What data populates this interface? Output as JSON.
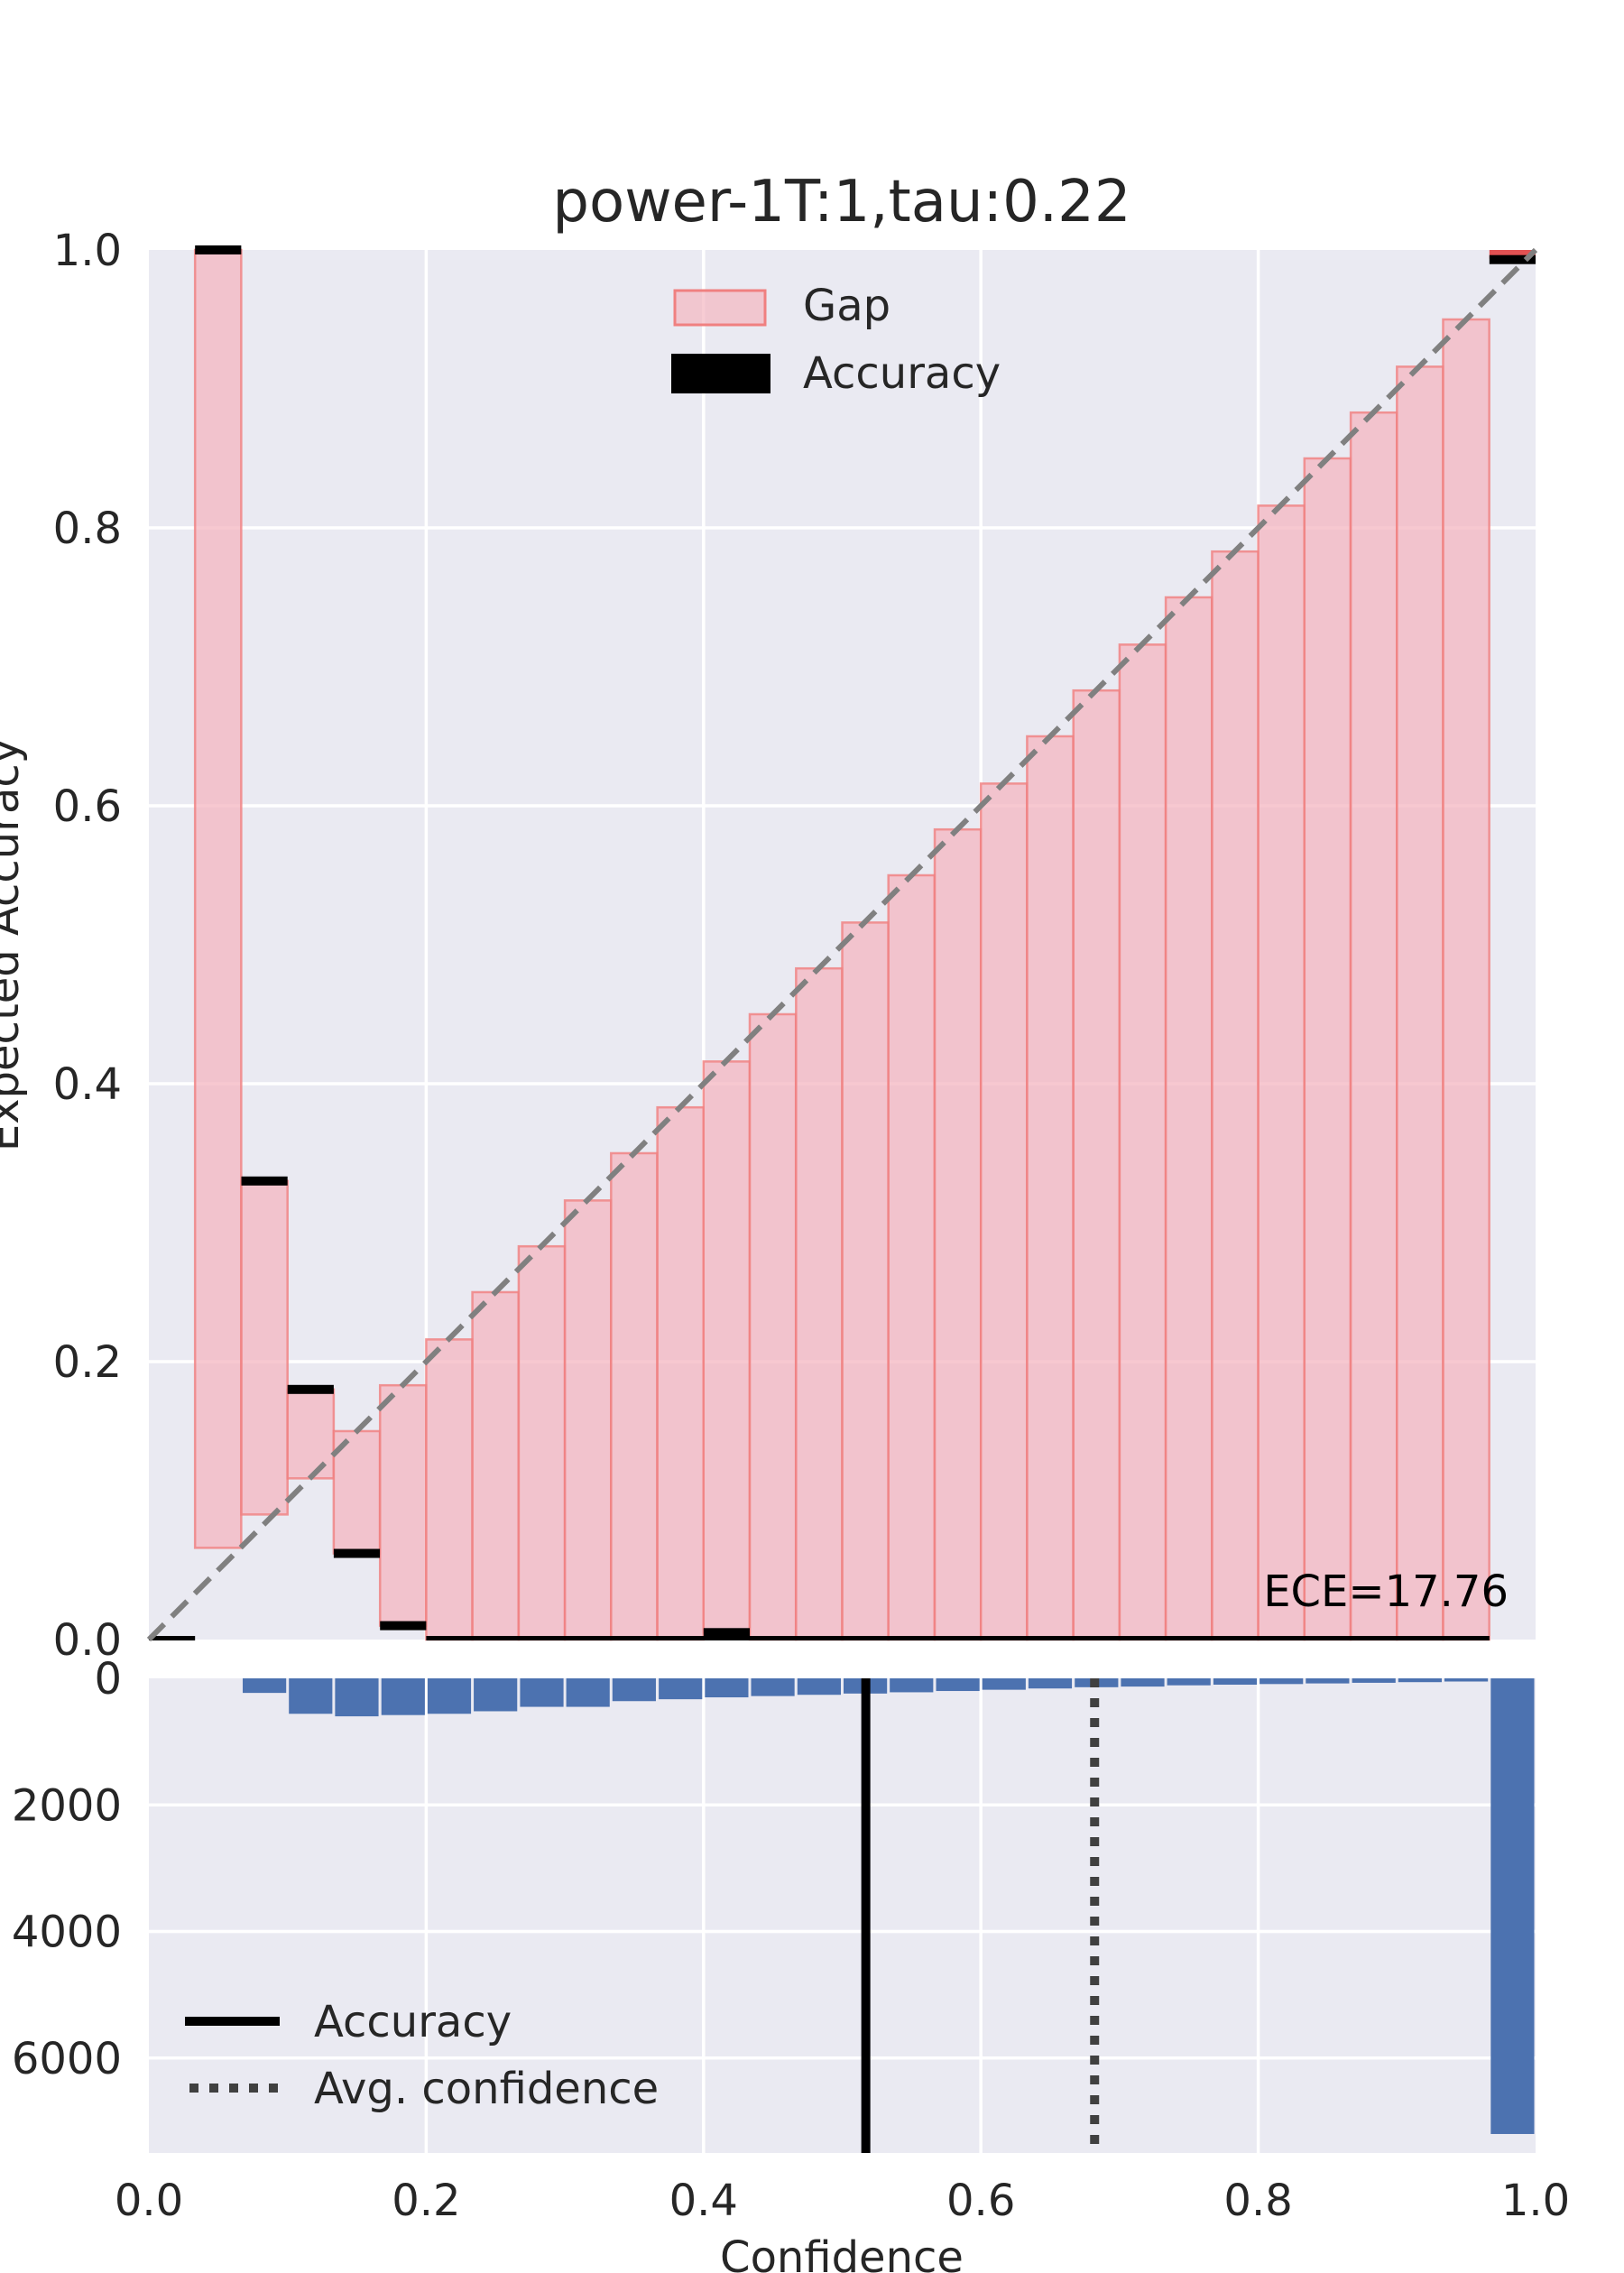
{
  "chart_data": [
    {
      "type": "bar",
      "subtype": "reliability-diagram",
      "title": "power-1T:1,tau:0.22",
      "xlabel": "",
      "ylabel": "Expected Accuracy",
      "xlim": [
        0,
        1
      ],
      "ylim": [
        0,
        1
      ],
      "grid": true,
      "legend_position": "top-center",
      "legend": [
        "Gap",
        "Accuracy"
      ],
      "yticks": [
        "0.0",
        "0.2",
        "0.4",
        "0.6",
        "0.8",
        "1.0"
      ],
      "annotation": "ECE=17.76",
      "bin_width": 0.0333,
      "bin_left_edges": [
        0.0333,
        0.0667,
        0.1,
        0.1333,
        0.1667,
        0.2,
        0.2333,
        0.2667,
        0.3,
        0.3333,
        0.3667,
        0.4,
        0.4333,
        0.4667,
        0.5,
        0.5333,
        0.5667,
        0.6,
        0.6333,
        0.6667,
        0.7,
        0.7333,
        0.7667,
        0.8,
        0.8333,
        0.8667,
        0.9,
        0.9333
      ],
      "series": [
        {
          "name": "Accuracy",
          "values": [
            1.0,
            0.33,
            0.18,
            0.062,
            0.01,
            0.0,
            0.0,
            0.0,
            0.0,
            0.0,
            0.0,
            0.005,
            0.0,
            0.0,
            0.0,
            0.0,
            0.0,
            0.0,
            0.0,
            0.0,
            0.0,
            0.0,
            0.0,
            0.0,
            0.0,
            0.0,
            0.0,
            0.0
          ]
        },
        {
          "name": "Gap",
          "values": [
            0.066,
            0.09,
            0.116,
            0.15,
            0.183,
            0.216,
            0.25,
            0.283,
            0.316,
            0.35,
            0.383,
            0.416,
            0.45,
            0.483,
            0.516,
            0.55,
            0.583,
            0.616,
            0.65,
            0.683,
            0.716,
            0.75,
            0.783,
            0.816,
            0.85,
            0.883,
            0.916,
            0.95
          ]
        }
      ],
      "top_bin": {
        "x": 0.9667,
        "accuracy": 0.995,
        "confidence": 1.0
      },
      "zero_accuracy_span": [
        0.2,
        0.9667
      ]
    },
    {
      "type": "bar",
      "subtype": "confidence-histogram",
      "xlabel": "Confidence",
      "ylabel": "",
      "xlim": [
        0,
        1
      ],
      "ylim": [
        7500,
        0
      ],
      "grid": true,
      "legend_position": "bottom-left",
      "xticks": [
        "0.0",
        "0.2",
        "0.4",
        "0.6",
        "0.8",
        "1.0"
      ],
      "yticks": [
        "0",
        "2000",
        "4000",
        "6000"
      ],
      "bin_left_edges": [
        0.0667,
        0.1,
        0.1333,
        0.1667,
        0.2,
        0.2333,
        0.2667,
        0.3,
        0.3333,
        0.3667,
        0.4,
        0.4333,
        0.4667,
        0.5,
        0.5333,
        0.5667,
        0.6,
        0.6333,
        0.6667,
        0.7,
        0.7333,
        0.7667,
        0.8,
        0.8333,
        0.8667,
        0.9,
        0.9333,
        0.9667
      ],
      "counts": [
        230,
        560,
        600,
        580,
        560,
        520,
        450,
        450,
        360,
        330,
        300,
        280,
        260,
        240,
        220,
        200,
        180,
        160,
        140,
        130,
        110,
        100,
        90,
        80,
        70,
        60,
        50,
        7200
      ],
      "bar_color": "#4c72b0",
      "lines": [
        {
          "name": "Accuracy",
          "x": 0.517,
          "style": "solid"
        },
        {
          "name": "Avg. confidence",
          "x": 0.682,
          "style": "dotted"
        }
      ]
    }
  ]
}
